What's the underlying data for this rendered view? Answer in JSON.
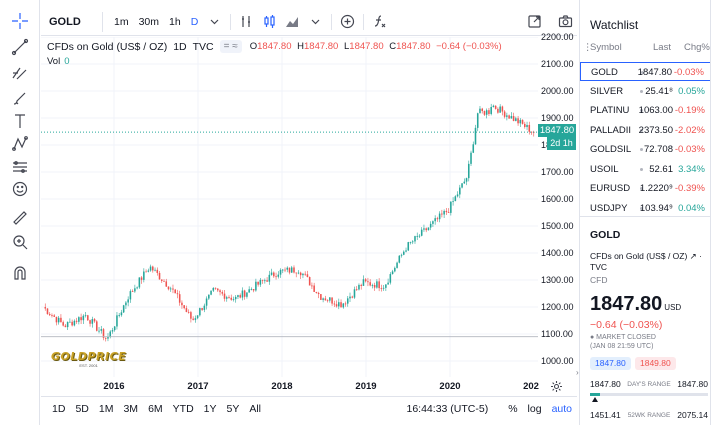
{
  "toolbar": {
    "symbol": "GOLD",
    "timeframes": [
      "1m",
      "30m",
      "1h",
      "D"
    ],
    "active_timeframe": "D",
    "icons": [
      "chevron-down-icon",
      "indicators-icon",
      "candles-icon",
      "area-icon",
      "add-icon",
      "function-icon"
    ],
    "right_icons": [
      "fullscreen-icon",
      "camera-icon"
    ]
  },
  "left_tools": [
    "crosshair-icon",
    "trend-line-icon",
    "fib-icon",
    "brush-icon",
    "text-icon",
    "pattern-icon",
    "forecast-icon",
    "emoji-icon",
    "ruler-icon",
    "zoom-in-icon",
    "magnet-icon"
  ],
  "legend": {
    "title": "CFDs on Gold (US$ / OZ)",
    "interval": "1D",
    "source": "TVC",
    "pill": "= ≈",
    "o_label": "O",
    "o": "1847.80",
    "h_label": "H",
    "h": "1847.80",
    "l_label": "L",
    "l": "1847.80",
    "c_label": "C",
    "c": "1847.80",
    "change": "−0.64 (−0.03%)",
    "vol_label": "Vol",
    "vol": "0"
  },
  "watermark": {
    "text": "GOLDPRICE",
    "sub": "EST. 2001"
  },
  "price_axis": [
    "2200.00",
    "2100.00",
    "2000.00",
    "1900.00",
    "1800.00",
    "1700.00",
    "1600.00",
    "1500.00",
    "1400.00",
    "1300.00",
    "1200.00",
    "1100.00",
    "1000.00"
  ],
  "last_price_label": "1847.80",
  "countdown_label": "2d 1h",
  "time_axis": [
    "2016",
    "2017",
    "2018",
    "2019",
    "2020",
    "202"
  ],
  "bottom": {
    "ranges": [
      "1D",
      "5D",
      "1M",
      "3M",
      "6M",
      "YTD",
      "1Y",
      "5Y",
      "All"
    ],
    "clock": "16:44:33 (UTC-5)",
    "percent": "%",
    "log": "log",
    "auto": "auto"
  },
  "watchlist": {
    "title": "Watchlist",
    "headers": {
      "symbol": "Symbol",
      "last": "Last",
      "chg": "Chg%"
    },
    "rows": [
      {
        "symbol": "GOLD",
        "last": "1847.80",
        "chg": "-0.03%",
        "dir": "down"
      },
      {
        "symbol": "SILVER",
        "last": "25.41⁸",
        "chg": "0.05%",
        "dir": "up"
      },
      {
        "symbol": "PLATINU",
        "last": "1063.00",
        "chg": "-0.19%",
        "dir": "down"
      },
      {
        "symbol": "PALLADII",
        "last": "2373.50",
        "chg": "-2.02%",
        "dir": "down"
      },
      {
        "symbol": "GOLDSIL",
        "last": "72.708",
        "chg": "-0.03%",
        "dir": "down"
      },
      {
        "symbol": "USOIL",
        "last": "52.61",
        "chg": "3.34%",
        "dir": "up"
      },
      {
        "symbol": "EURUSD",
        "last": "1.2220⁹",
        "chg": "-0.39%",
        "dir": "down"
      },
      {
        "symbol": "USDJPY",
        "last": "103.94⁹",
        "chg": "0.04%",
        "dir": "up"
      }
    ]
  },
  "details": {
    "symbol": "GOLD",
    "description": "CFDs on Gold (US$ / OZ) ↗ · TVC",
    "type": "CFD",
    "price": "1847.80",
    "currency": "USD",
    "change": "−0.64 (−0.03%)",
    "status": "● MARKET CLOSED",
    "status_time": "(JAN 08 21:59 UTC)",
    "bid": "1847.80",
    "ask": "1849.80",
    "day_low": "1847.80",
    "day_label": "DAY'S RANGE",
    "day_high": "1847.80",
    "wk_low": "1451.41",
    "wk_label": "52WK RANGE",
    "wk_high": "2075.14"
  },
  "colors": {
    "up": "#26a69a",
    "down": "#ef5350",
    "accent": "#2962ff"
  },
  "chart_data": {
    "type": "candlestick",
    "title": "",
    "ylim": [
      950,
      2250
    ],
    "x": [
      "2015-04",
      "2015-07",
      "2015-10",
      "2016-01",
      "2016-04",
      "2016-07",
      "2016-10",
      "2017-01",
      "2017-04",
      "2017-07",
      "2017-10",
      "2018-01",
      "2018-04",
      "2018-07",
      "2018-10",
      "2019-01",
      "2019-04",
      "2019-07",
      "2019-10",
      "2020-01",
      "2020-04",
      "2020-07",
      "2020-10",
      "2021-01"
    ],
    "y": [
      1200,
      1130,
      1170,
      1080,
      1240,
      1350,
      1270,
      1150,
      1260,
      1230,
      1280,
      1330,
      1340,
      1240,
      1210,
      1290,
      1280,
      1420,
      1490,
      1560,
      1700,
      1950,
      1900,
      1847.8
    ],
    "last_price": 1847.8
  }
}
